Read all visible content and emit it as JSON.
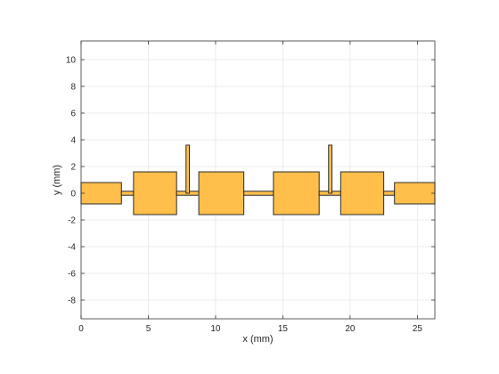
{
  "chart_data": {
    "type": "layout-plot",
    "xlabel": "x (mm)",
    "ylabel": "y (mm)",
    "xlim": [
      0,
      26.3
    ],
    "ylim": [
      -9.4,
      11.4
    ],
    "xticks": [
      0,
      5,
      10,
      15,
      20,
      25
    ],
    "yticks": [
      -8,
      -6,
      -4,
      -2,
      0,
      2,
      4,
      6,
      8,
      10
    ],
    "grid": true,
    "fill_color": "#FFBF4A",
    "edge_color": "#2B2B2B",
    "grid_color": "#E6E6E6",
    "shapes": [
      {
        "name": "port-pad-left",
        "x": [
          0,
          3
        ],
        "y": [
          -0.8,
          0.8
        ]
      },
      {
        "name": "line-1",
        "x": [
          3,
          3.9
        ],
        "y": [
          -0.15,
          0.15
        ]
      },
      {
        "name": "resonator-1",
        "x": [
          3.9,
          7.1
        ],
        "y": [
          -1.6,
          1.6
        ]
      },
      {
        "name": "line-2",
        "x": [
          7.1,
          8.75
        ],
        "y": [
          -0.15,
          0.15
        ]
      },
      {
        "name": "stub-1",
        "x": [
          7.8,
          8.05
        ],
        "y": [
          0,
          3.6
        ]
      },
      {
        "name": "resonator-2",
        "x": [
          8.75,
          12.1
        ],
        "y": [
          -1.6,
          1.6
        ]
      },
      {
        "name": "line-3",
        "x": [
          12.1,
          14.3
        ],
        "y": [
          -0.15,
          0.15
        ]
      },
      {
        "name": "resonator-3",
        "x": [
          14.3,
          17.7
        ],
        "y": [
          -1.6,
          1.6
        ]
      },
      {
        "name": "line-4",
        "x": [
          17.7,
          19.3
        ],
        "y": [
          -0.15,
          0.15
        ]
      },
      {
        "name": "stub-2",
        "x": [
          18.4,
          18.65
        ],
        "y": [
          0,
          3.6
        ]
      },
      {
        "name": "resonator-4",
        "x": [
          19.3,
          22.5
        ],
        "y": [
          -1.6,
          1.6
        ]
      },
      {
        "name": "line-5",
        "x": [
          22.5,
          23.3
        ],
        "y": [
          -0.15,
          0.15
        ]
      },
      {
        "name": "port-pad-right",
        "x": [
          23.3,
          26.3
        ],
        "y": [
          -0.8,
          0.8
        ]
      }
    ]
  }
}
